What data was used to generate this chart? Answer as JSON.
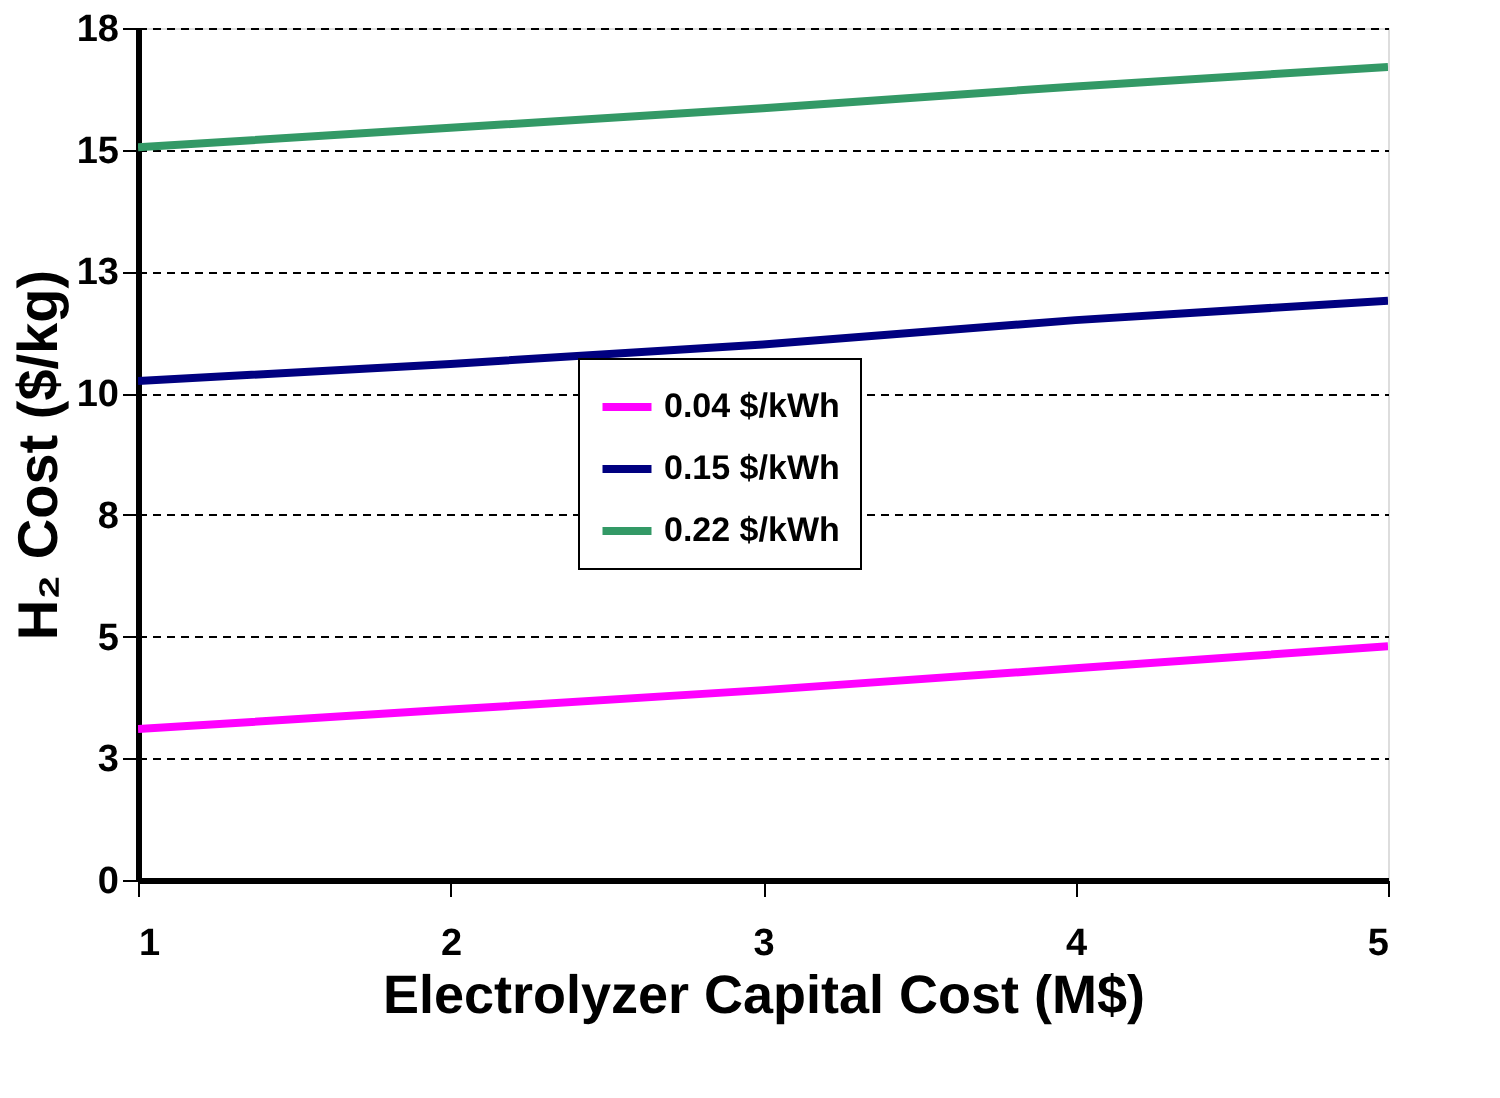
{
  "chart_data": {
    "type": "line",
    "xlabel": "Electrolyzer Capital Cost (M$)",
    "ylabel": "H₂ Cost ($/kg)",
    "x": [
      1,
      2,
      3,
      4,
      5
    ],
    "series": [
      {
        "name": "0.04 $/kWh",
        "color": "#ff00ff",
        "values": [
          3.1,
          3.5,
          3.9,
          4.35,
          4.8
        ]
      },
      {
        "name": "0.15 $/kWh",
        "color": "#000080",
        "values": [
          10.25,
          10.6,
          11.0,
          11.5,
          11.9
        ]
      },
      {
        "name": "0.22 $/kWh",
        "color": "#339966",
        "values": [
          15.05,
          15.45,
          15.85,
          16.3,
          16.7
        ]
      }
    ],
    "xlim": [
      1,
      5
    ],
    "xticks": [
      1,
      2,
      3,
      4,
      5
    ],
    "ylim": [
      0,
      17.5
    ],
    "yticks": [
      0,
      {
        "value": 2.5,
        "label": "3"
      },
      5,
      {
        "value": 7.5,
        "label": "8"
      },
      10,
      {
        "value": 12.5,
        "label": "13"
      },
      15,
      {
        "value": 17.5,
        "label": "18"
      }
    ],
    "grid": "y",
    "legend": "center",
    "line_style": "solid",
    "marker": "none"
  }
}
